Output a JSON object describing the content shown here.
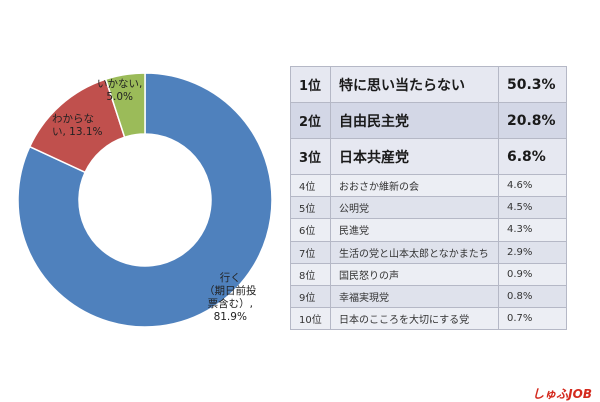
{
  "chart_data": [
    {
      "type": "pie",
      "variant": "donut",
      "series": [
        {
          "name": "",
          "labels": [
            "行く\n（期日前投\n票含む）,\n81.9%",
            "わからな\nい, 13.1%",
            "いかない,\n5.0%"
          ],
          "categories": [
            "行く（期日前投票含む）",
            "わからない",
            "いかない"
          ],
          "values": [
            81.9,
            13.1,
            5.0
          ],
          "colors": [
            "#4f81bd",
            "#c0504d",
            "#9bbb59"
          ]
        }
      ]
    },
    {
      "type": "table",
      "rows": [
        {
          "rank": "1位",
          "name": "特に思い当たらない",
          "pct": "50.3%"
        },
        {
          "rank": "2位",
          "name": "自由民主党",
          "pct": "20.8%"
        },
        {
          "rank": "3位",
          "name": "日本共産党",
          "pct": "6.8%"
        },
        {
          "rank": "4位",
          "name": "おおさか維新の会",
          "pct": "4.6%"
        },
        {
          "rank": "5位",
          "name": "公明党",
          "pct": "4.5%"
        },
        {
          "rank": "6位",
          "name": "民進党",
          "pct": "4.3%"
        },
        {
          "rank": "7位",
          "name": "生活の党と山本太郎となかまたち",
          "pct": "2.9%"
        },
        {
          "rank": "8位",
          "name": "国民怒りの声",
          "pct": "0.9%"
        },
        {
          "rank": "9位",
          "name": "幸福実現党",
          "pct": "0.8%"
        },
        {
          "rank": "10位",
          "name": "日本のこころを大切にする党",
          "pct": "0.7%"
        }
      ]
    }
  ],
  "brand": {
    "text": "しゅふJOB"
  }
}
